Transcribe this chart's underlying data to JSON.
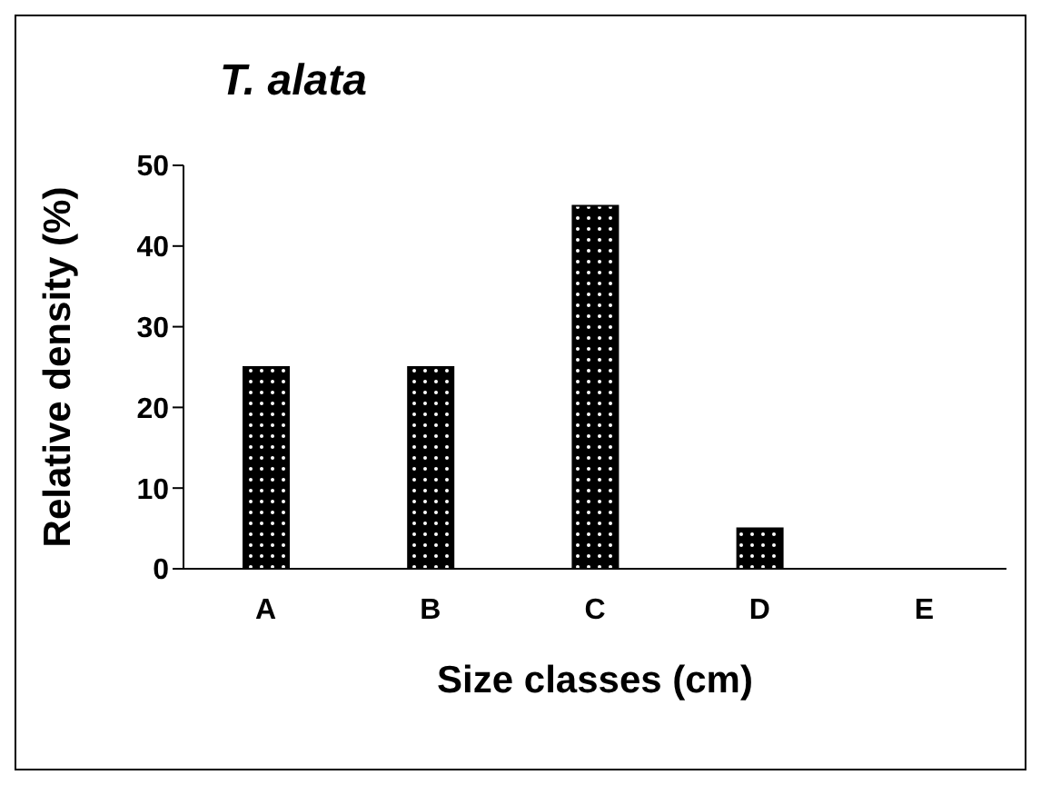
{
  "chart_data": {
    "type": "bar",
    "title": "T. alata",
    "xlabel": "Size classes (cm)",
    "ylabel": "Relative density (%)",
    "categories": [
      "A",
      "B",
      "C",
      "D",
      "E"
    ],
    "values": [
      25,
      25,
      45,
      5,
      0
    ],
    "color": "#000000",
    "ylim": [
      0,
      50
    ],
    "yticks": [
      0,
      10,
      20,
      30,
      40,
      50
    ],
    "grid": false
  }
}
